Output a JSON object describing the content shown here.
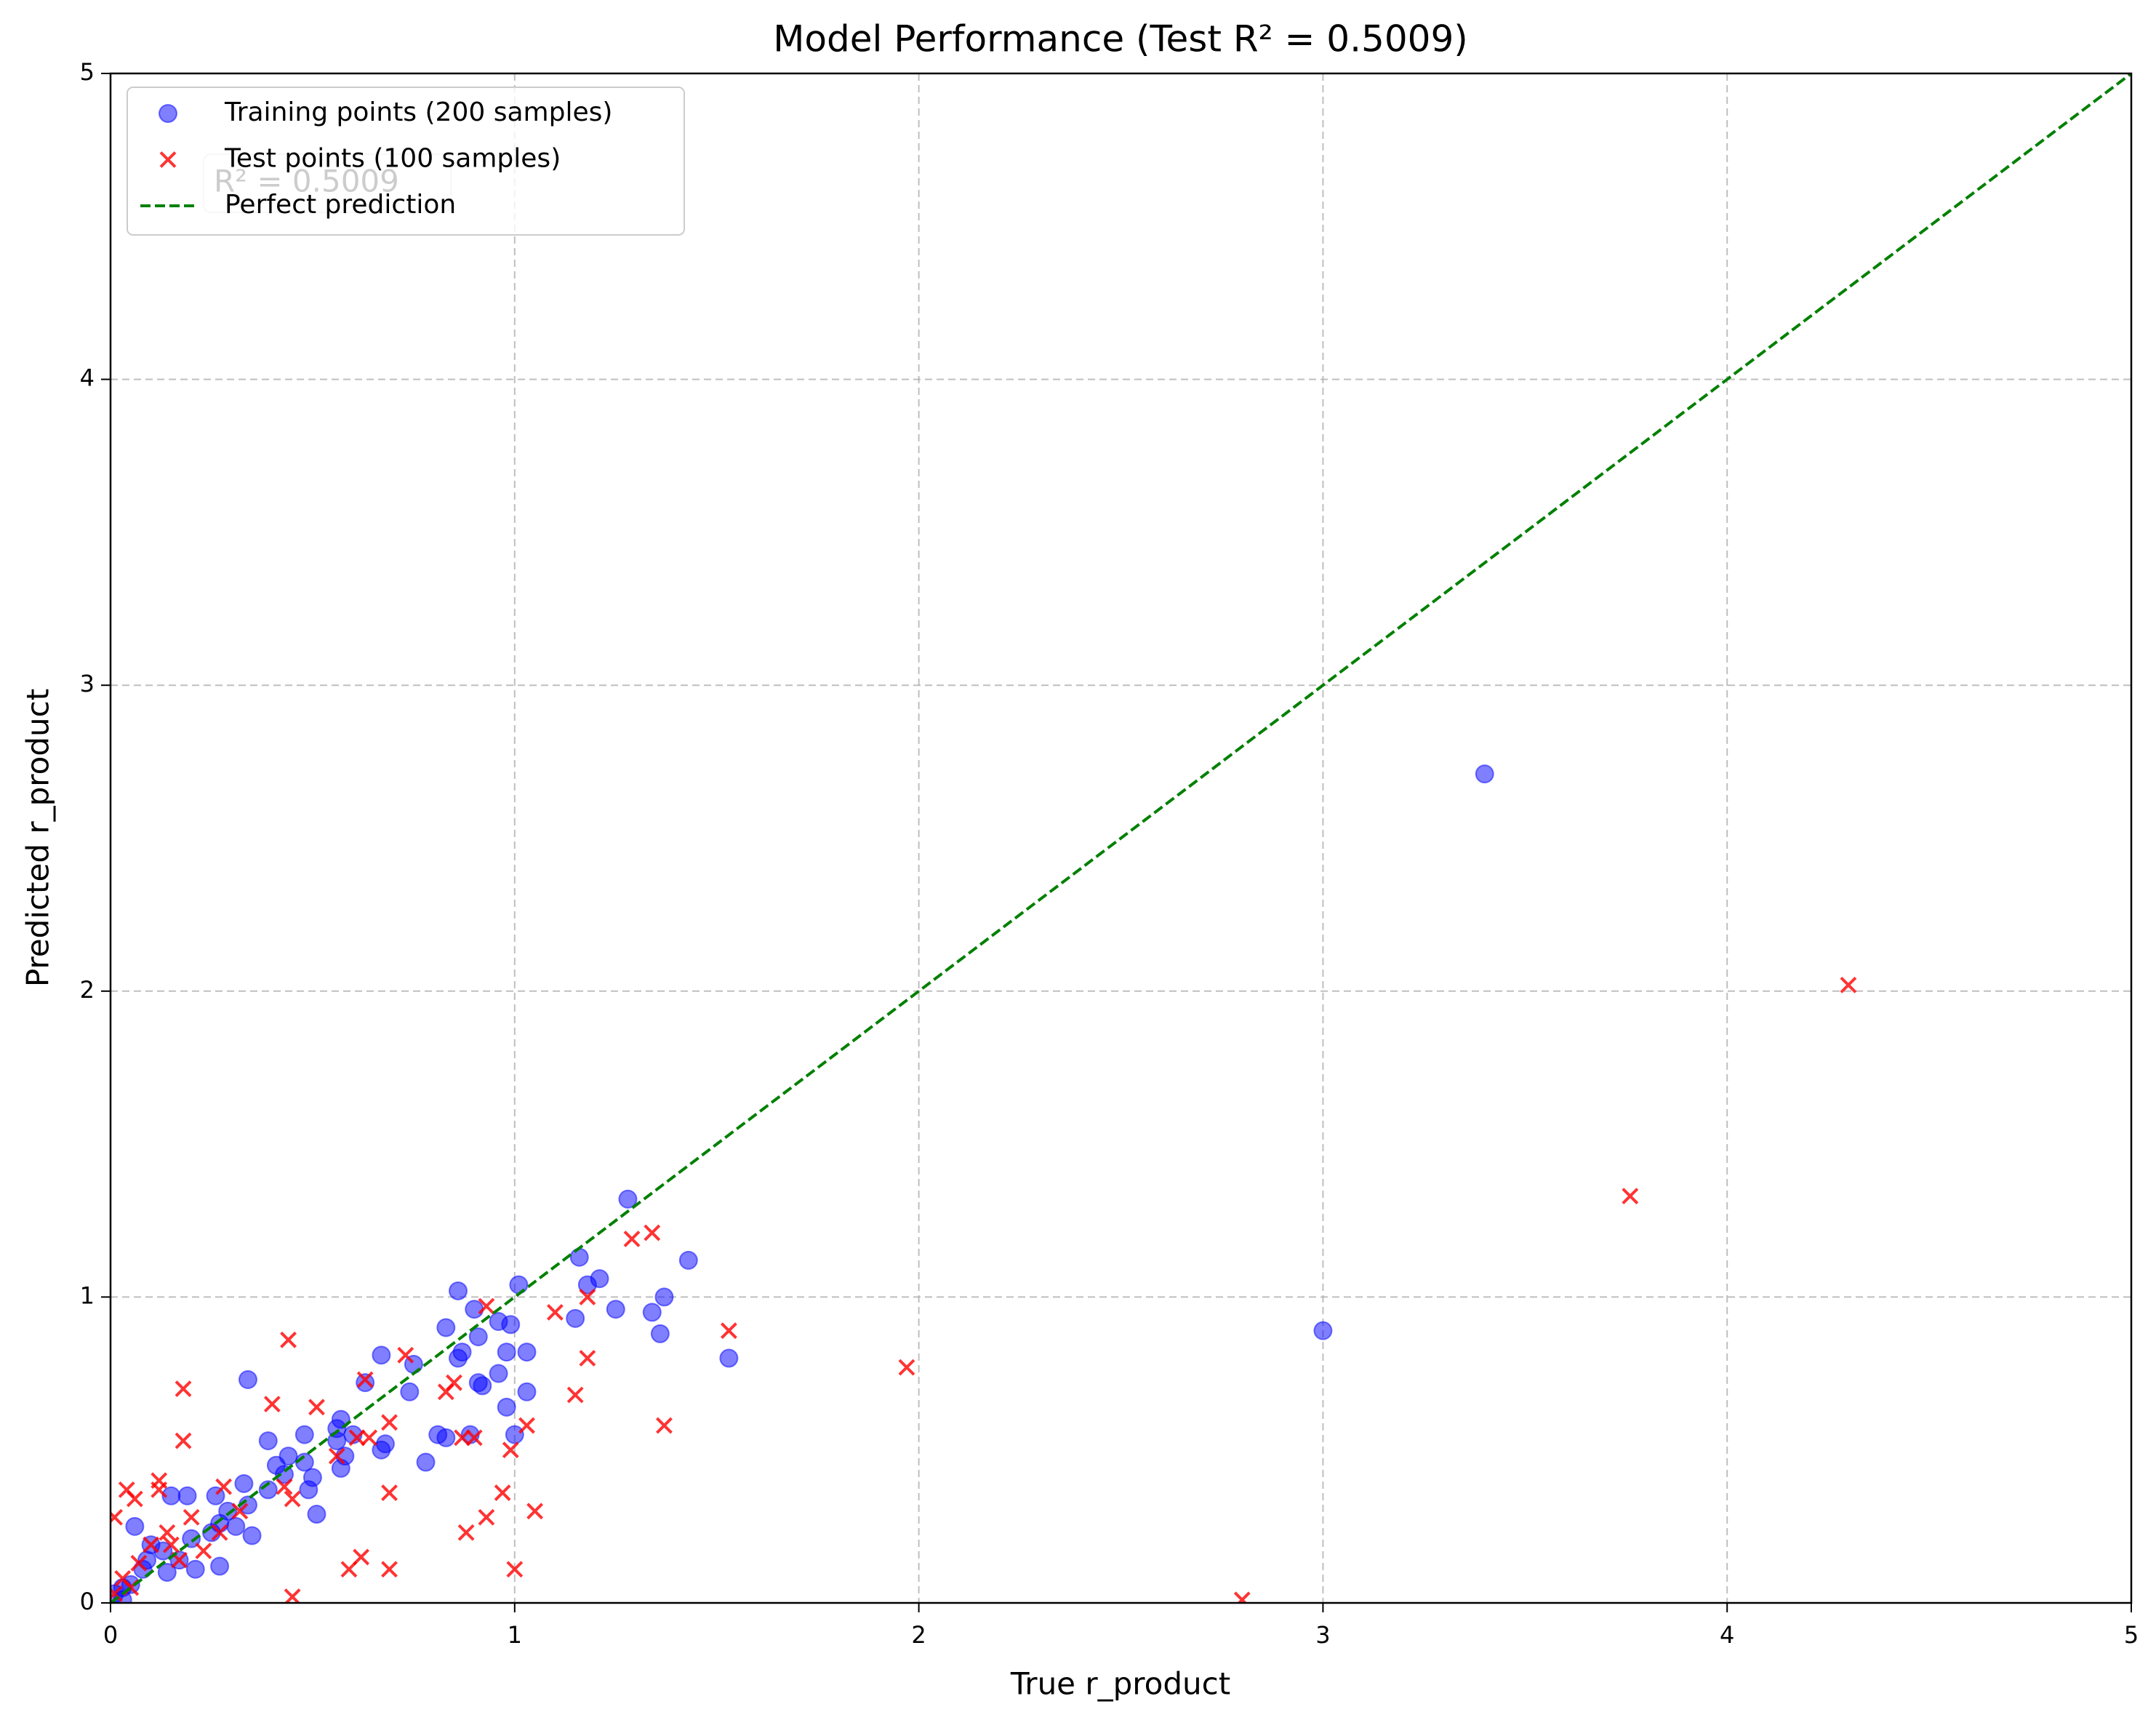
{
  "chart_data": {
    "type": "scatter",
    "title": "Model Performance (Test R² = 0.5009)",
    "x_label": "True r_product",
    "y_label": "Predicted r_product",
    "annotation": "R² = 0.5009",
    "xlim": [
      0,
      5
    ],
    "ylim": [
      0,
      5
    ],
    "xticks": [
      0,
      1,
      2,
      3,
      4,
      5
    ],
    "yticks": [
      0,
      1,
      2,
      3,
      4,
      5
    ],
    "grid": true,
    "legend": "upper left",
    "series": [
      {
        "name": "Training points (200 samples)",
        "color": "#0000ff",
        "marker": "o",
        "x": [
          3.4,
          3.0,
          1.53,
          1.43,
          1.37,
          1.36,
          1.34,
          1.28,
          1.25,
          1.21,
          1.18,
          1.16,
          1.15,
          1.03,
          1.03,
          1.01,
          1.0,
          0.98,
          0.99,
          0.98,
          0.96,
          0.96,
          0.92,
          0.91,
          0.91,
          0.9,
          0.89,
          0.87,
          0.86,
          0.86,
          0.83,
          0.83,
          0.81,
          0.78,
          0.75,
          0.74,
          0.68,
          0.67,
          0.67,
          0.63,
          0.6,
          0.58,
          0.57,
          0.57,
          0.56,
          0.56,
          0.51,
          0.5,
          0.49,
          0.48,
          0.48,
          0.44,
          0.43,
          0.41,
          0.39,
          0.39,
          0.35,
          0.34,
          0.34,
          0.33,
          0.31,
          0.29,
          0.27,
          0.26,
          0.25,
          0.21,
          0.19,
          0.17,
          0.15,
          0.13,
          0.1,
          0.08,
          0.06,
          0.05,
          0.03,
          0.01,
          0.09,
          0.2,
          0.27,
          0.14,
          0.03
        ],
        "values": [
          2.71,
          0.89,
          0.8,
          1.12,
          1.0,
          0.88,
          0.95,
          1.32,
          0.96,
          1.06,
          1.04,
          1.13,
          0.93,
          0.69,
          0.82,
          1.04,
          0.55,
          0.64,
          0.91,
          0.82,
          0.75,
          0.92,
          0.71,
          0.72,
          0.87,
          0.96,
          0.55,
          0.82,
          1.02,
          0.8,
          0.54,
          0.9,
          0.55,
          0.46,
          0.78,
          0.69,
          0.52,
          0.5,
          0.81,
          0.72,
          0.55,
          0.48,
          0.44,
          0.6,
          0.57,
          0.53,
          0.29,
          0.41,
          0.37,
          0.55,
          0.46,
          0.48,
          0.42,
          0.45,
          0.53,
          0.37,
          0.22,
          0.73,
          0.32,
          0.39,
          0.25,
          0.3,
          0.12,
          0.35,
          0.23,
          0.11,
          0.35,
          0.14,
          0.35,
          0.17,
          0.19,
          0.11,
          0.25,
          0.06,
          0.05,
          0.03,
          0.14,
          0.21,
          0.26,
          0.1,
          0.01
        ]
      },
      {
        "name": "Test points (100 samples)",
        "color": "#ff0000",
        "marker": "x",
        "x": [
          4.3,
          3.76,
          2.8,
          1.97,
          1.53,
          1.34,
          1.29,
          1.37,
          1.18,
          1.18,
          1.15,
          1.1,
          1.03,
          1.05,
          1.0,
          0.99,
          0.97,
          0.93,
          0.88,
          0.93,
          0.9,
          0.87,
          0.85,
          0.83,
          0.73,
          0.69,
          0.69,
          0.69,
          0.63,
          0.62,
          0.59,
          0.61,
          0.64,
          0.56,
          0.51,
          0.44,
          0.45,
          0.45,
          0.4,
          0.43,
          0.18,
          0.18,
          0.28,
          0.12,
          0.12,
          0.04,
          0.06,
          0.01,
          0.2,
          0.23,
          0.14,
          0.1,
          0.07,
          0.03,
          0.01,
          0.15,
          0.32,
          0.27,
          0.05,
          0.17
        ],
        "values": [
          2.02,
          1.33,
          0.01,
          0.77,
          0.89,
          1.21,
          1.19,
          0.58,
          1.0,
          0.8,
          0.68,
          0.95,
          0.58,
          0.3,
          0.11,
          0.5,
          0.36,
          0.28,
          0.23,
          0.97,
          0.54,
          0.54,
          0.72,
          0.69,
          0.81,
          0.36,
          0.11,
          0.59,
          0.73,
          0.15,
          0.11,
          0.54,
          0.54,
          0.48,
          0.64,
          0.86,
          0.02,
          0.34,
          0.65,
          0.38,
          0.7,
          0.53,
          0.38,
          0.4,
          0.37,
          0.37,
          0.34,
          0.28,
          0.28,
          0.17,
          0.23,
          0.19,
          0.13,
          0.08,
          0.03,
          0.19,
          0.3,
          0.23,
          0.05,
          0.14
        ]
      },
      {
        "name": "Perfect prediction",
        "type": "line",
        "color": "#008000",
        "dashed": true,
        "x": [
          0,
          5
        ],
        "values": [
          0,
          5
        ]
      }
    ]
  }
}
